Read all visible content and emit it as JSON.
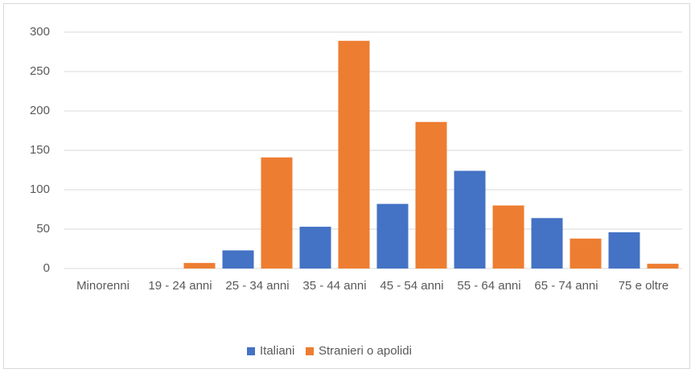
{
  "chart_data": {
    "type": "bar",
    "categories": [
      "Minorenni",
      "19 - 24 anni",
      "25 - 34 anni",
      "35 - 44 anni",
      "45 - 54 anni",
      "55 - 64 anni",
      "65 - 74 anni",
      "75 e oltre"
    ],
    "series": [
      {
        "name": "Italiani",
        "color": "#4472c4",
        "values": [
          0,
          0,
          23,
          53,
          82,
          124,
          64,
          46
        ]
      },
      {
        "name": "Stranieri o apolidi",
        "color": "#ed7d31",
        "values": [
          0,
          7,
          141,
          289,
          186,
          80,
          38,
          6
        ]
      }
    ],
    "ylim": [
      0,
      300
    ],
    "yticks": [
      0,
      50,
      100,
      150,
      200,
      250,
      300
    ],
    "grid": true,
    "legend": "bottom"
  }
}
